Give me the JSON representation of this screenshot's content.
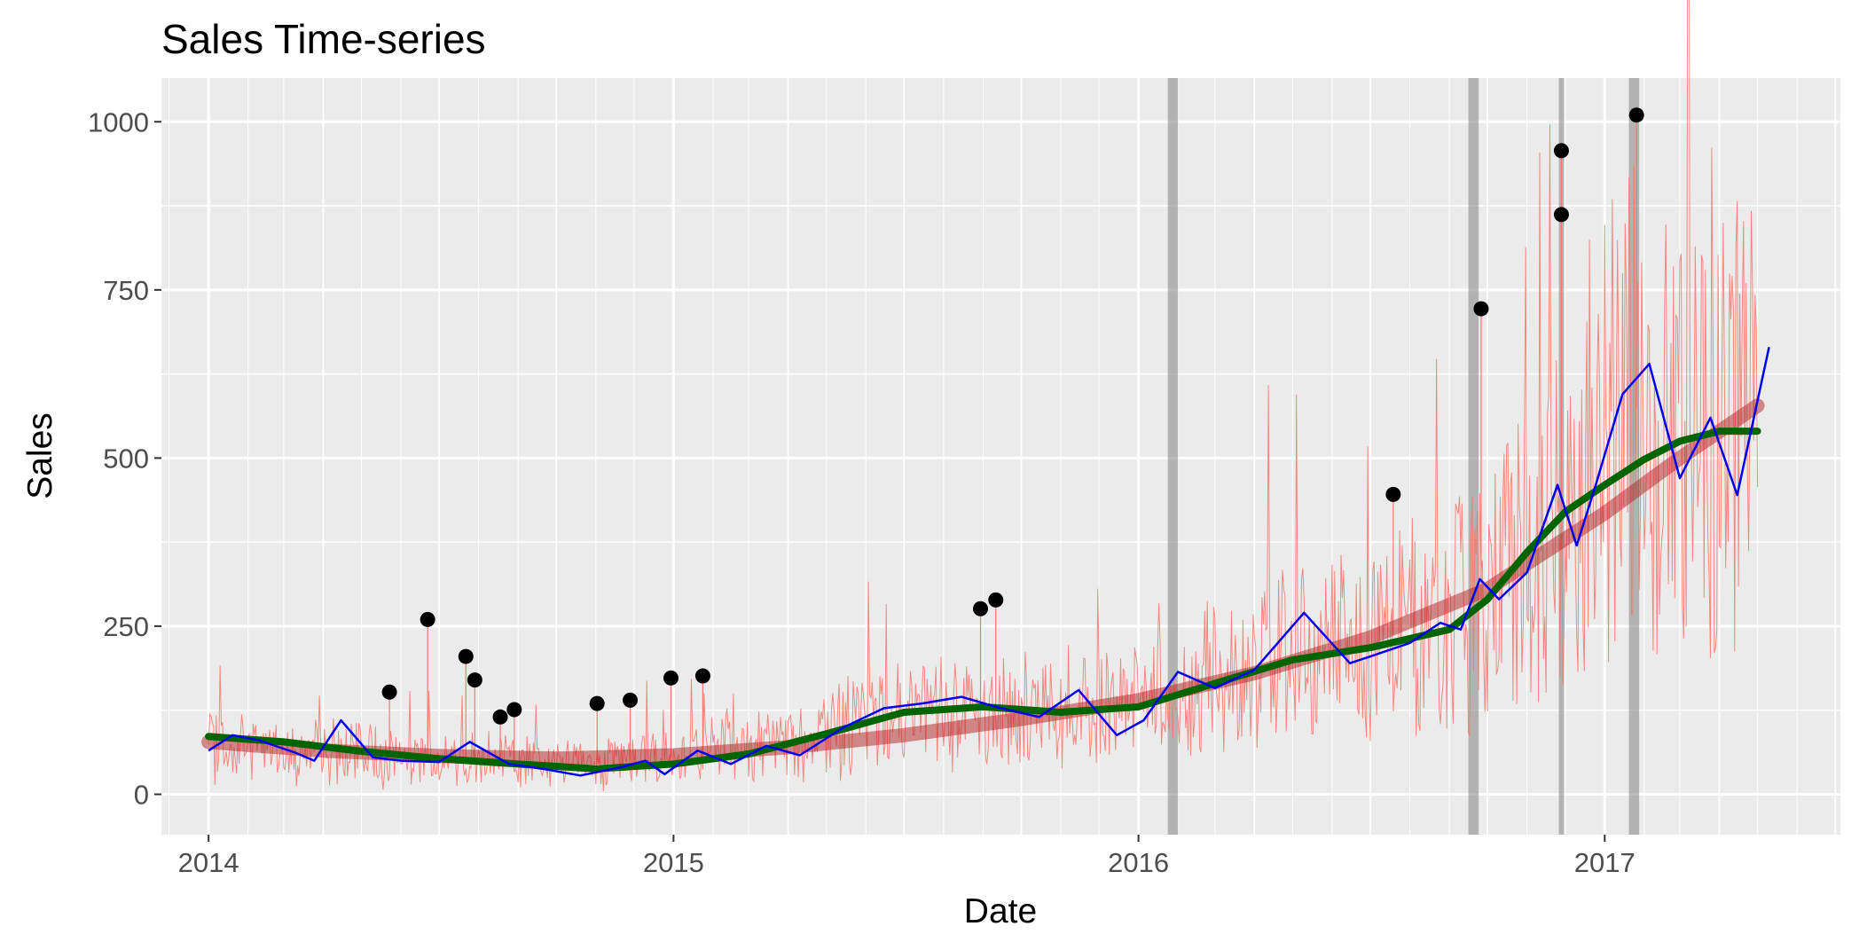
{
  "chart_data": {
    "type": "line",
    "title": "Sales Time-series",
    "xlabel": "Date",
    "ylabel": "Sales",
    "xlim": [
      "2013-11-25",
      "2017-07-05"
    ],
    "ylim": [
      -60,
      1065
    ],
    "x_ticks": [
      {
        "date": "2014-01-01",
        "label": "2014"
      },
      {
        "date": "2015-01-01",
        "label": "2015"
      },
      {
        "date": "2016-01-01",
        "label": "2016"
      },
      {
        "date": "2017-01-01",
        "label": "2017"
      }
    ],
    "y_ticks": [
      {
        "value": 0,
        "label": "0"
      },
      {
        "value": 250,
        "label": "250"
      },
      {
        "value": 500,
        "label": "500"
      },
      {
        "value": 750,
        "label": "750"
      },
      {
        "value": 1000,
        "label": "1000"
      }
    ],
    "grid": true,
    "legend": "none",
    "highlight_bands": [
      {
        "start": "2016-01-24",
        "end": "2016-02-01"
      },
      {
        "start": "2016-09-16",
        "end": "2016-09-24"
      },
      {
        "start": "2016-11-26",
        "end": "2016-11-30"
      },
      {
        "start": "2017-01-20",
        "end": "2017-01-28"
      }
    ],
    "series": [
      {
        "kind": "raw-daily",
        "color": "#f8766d",
        "anchors": [
          {
            "x": "2014-01-01",
            "y": 70
          },
          {
            "x": "2014-04-01",
            "y": 65
          },
          {
            "x": "2014-07-01",
            "y": 55
          },
          {
            "x": "2014-10-01",
            "y": 45
          },
          {
            "x": "2015-01-01",
            "y": 55
          },
          {
            "x": "2015-04-01",
            "y": 75
          },
          {
            "x": "2015-07-01",
            "y": 125
          },
          {
            "x": "2015-10-01",
            "y": 125
          },
          {
            "x": "2016-01-01",
            "y": 130
          },
          {
            "x": "2016-04-01",
            "y": 195
          },
          {
            "x": "2016-07-01",
            "y": 225
          },
          {
            "x": "2016-10-01",
            "y": 285
          },
          {
            "x": "2016-12-01",
            "y": 420
          },
          {
            "x": "2017-01-15",
            "y": 600
          },
          {
            "x": "2017-03-01",
            "y": 490
          },
          {
            "x": "2017-05-01",
            "y": 560
          }
        ]
      },
      {
        "kind": "linear-trend",
        "color": "#b22222",
        "points": [
          {
            "x": "2014-01-01",
            "y": 78
          },
          {
            "x": "2014-04-01",
            "y": 65
          },
          {
            "x": "2014-07-01",
            "y": 57
          },
          {
            "x": "2014-10-01",
            "y": 53
          },
          {
            "x": "2015-01-01",
            "y": 58
          },
          {
            "x": "2015-04-01",
            "y": 70
          },
          {
            "x": "2015-07-01",
            "y": 88
          },
          {
            "x": "2015-10-01",
            "y": 112
          },
          {
            "x": "2016-01-01",
            "y": 140
          },
          {
            "x": "2016-04-01",
            "y": 180
          },
          {
            "x": "2016-07-01",
            "y": 233
          },
          {
            "x": "2016-10-01",
            "y": 305
          },
          {
            "x": "2017-01-01",
            "y": 418
          },
          {
            "x": "2017-03-01",
            "y": 500
          },
          {
            "x": "2017-05-01",
            "y": 578
          }
        ]
      },
      {
        "kind": "loess-trend",
        "color": "#006400",
        "points": [
          {
            "x": "2014-01-01",
            "y": 86
          },
          {
            "x": "2014-03-01",
            "y": 78
          },
          {
            "x": "2014-05-01",
            "y": 64
          },
          {
            "x": "2014-07-01",
            "y": 53
          },
          {
            "x": "2014-09-01",
            "y": 45
          },
          {
            "x": "2014-11-01",
            "y": 38
          },
          {
            "x": "2015-01-01",
            "y": 45
          },
          {
            "x": "2015-03-01",
            "y": 60
          },
          {
            "x": "2015-05-01",
            "y": 90
          },
          {
            "x": "2015-07-01",
            "y": 122
          },
          {
            "x": "2015-09-01",
            "y": 130
          },
          {
            "x": "2015-11-01",
            "y": 122
          },
          {
            "x": "2016-01-01",
            "y": 130
          },
          {
            "x": "2016-03-01",
            "y": 165
          },
          {
            "x": "2016-05-01",
            "y": 200
          },
          {
            "x": "2016-07-01",
            "y": 218
          },
          {
            "x": "2016-09-01",
            "y": 245
          },
          {
            "x": "2016-10-01",
            "y": 290
          },
          {
            "x": "2016-11-01",
            "y": 360
          },
          {
            "x": "2016-12-01",
            "y": 420
          },
          {
            "x": "2017-01-01",
            "y": 460
          },
          {
            "x": "2017-02-01",
            "y": 498
          },
          {
            "x": "2017-03-01",
            "y": 525
          },
          {
            "x": "2017-04-01",
            "y": 540
          },
          {
            "x": "2017-05-01",
            "y": 540
          }
        ]
      },
      {
        "kind": "rolling-mean",
        "color": "#0000ee",
        "points": [
          {
            "x": "2014-01-01",
            "y": 65
          },
          {
            "x": "2014-01-20",
            "y": 88
          },
          {
            "x": "2014-02-10",
            "y": 80
          },
          {
            "x": "2014-03-10",
            "y": 62
          },
          {
            "x": "2014-03-25",
            "y": 50
          },
          {
            "x": "2014-04-15",
            "y": 110
          },
          {
            "x": "2014-05-10",
            "y": 55
          },
          {
            "x": "2014-06-01",
            "y": 50
          },
          {
            "x": "2014-07-01",
            "y": 48
          },
          {
            "x": "2014-07-25",
            "y": 78
          },
          {
            "x": "2014-08-25",
            "y": 45
          },
          {
            "x": "2014-09-20",
            "y": 38
          },
          {
            "x": "2014-10-20",
            "y": 28
          },
          {
            "x": "2014-11-20",
            "y": 40
          },
          {
            "x": "2014-12-10",
            "y": 50
          },
          {
            "x": "2014-12-25",
            "y": 30
          },
          {
            "x": "2015-01-20",
            "y": 65
          },
          {
            "x": "2015-02-15",
            "y": 45
          },
          {
            "x": "2015-03-15",
            "y": 72
          },
          {
            "x": "2015-04-10",
            "y": 58
          },
          {
            "x": "2015-05-15",
            "y": 100
          },
          {
            "x": "2015-06-15",
            "y": 128
          },
          {
            "x": "2015-07-15",
            "y": 135
          },
          {
            "x": "2015-08-15",
            "y": 145
          },
          {
            "x": "2015-09-15",
            "y": 128
          },
          {
            "x": "2015-10-15",
            "y": 115
          },
          {
            "x": "2015-11-15",
            "y": 155
          },
          {
            "x": "2015-12-15",
            "y": 88
          },
          {
            "x": "2016-01-05",
            "y": 110
          },
          {
            "x": "2016-02-01",
            "y": 182
          },
          {
            "x": "2016-03-01",
            "y": 158
          },
          {
            "x": "2016-04-01",
            "y": 185
          },
          {
            "x": "2016-05-10",
            "y": 270
          },
          {
            "x": "2016-06-15",
            "y": 195
          },
          {
            "x": "2016-07-01",
            "y": 205
          },
          {
            "x": "2016-08-01",
            "y": 225
          },
          {
            "x": "2016-08-25",
            "y": 255
          },
          {
            "x": "2016-09-10",
            "y": 245
          },
          {
            "x": "2016-09-25",
            "y": 320
          },
          {
            "x": "2016-10-10",
            "y": 290
          },
          {
            "x": "2016-11-01",
            "y": 330
          },
          {
            "x": "2016-11-25",
            "y": 460
          },
          {
            "x": "2016-12-10",
            "y": 370
          },
          {
            "x": "2016-12-25",
            "y": 460
          },
          {
            "x": "2017-01-15",
            "y": 595
          },
          {
            "x": "2017-02-05",
            "y": 640
          },
          {
            "x": "2017-03-01",
            "y": 470
          },
          {
            "x": "2017-03-25",
            "y": 560
          },
          {
            "x": "2017-04-15",
            "y": 445
          },
          {
            "x": "2017-05-10",
            "y": 665
          }
        ]
      }
    ],
    "highlighted_points": [
      {
        "x": "2014-05-23",
        "y": 152
      },
      {
        "x": "2014-06-22",
        "y": 260
      },
      {
        "x": "2014-07-22",
        "y": 205
      },
      {
        "x": "2014-07-29",
        "y": 170
      },
      {
        "x": "2014-08-18",
        "y": 115
      },
      {
        "x": "2014-08-29",
        "y": 126
      },
      {
        "x": "2014-11-02",
        "y": 135
      },
      {
        "x": "2014-11-28",
        "y": 140
      },
      {
        "x": "2014-12-30",
        "y": 173
      },
      {
        "x": "2015-01-24",
        "y": 176
      },
      {
        "x": "2015-08-30",
        "y": 276
      },
      {
        "x": "2015-09-11",
        "y": 289
      },
      {
        "x": "2016-07-19",
        "y": 446
      },
      {
        "x": "2016-09-26",
        "y": 722
      },
      {
        "x": "2016-11-28",
        "y": 957
      },
      {
        "x": "2016-11-28",
        "y": 862
      },
      {
        "x": "2017-01-26",
        "y": 1010
      }
    ]
  }
}
